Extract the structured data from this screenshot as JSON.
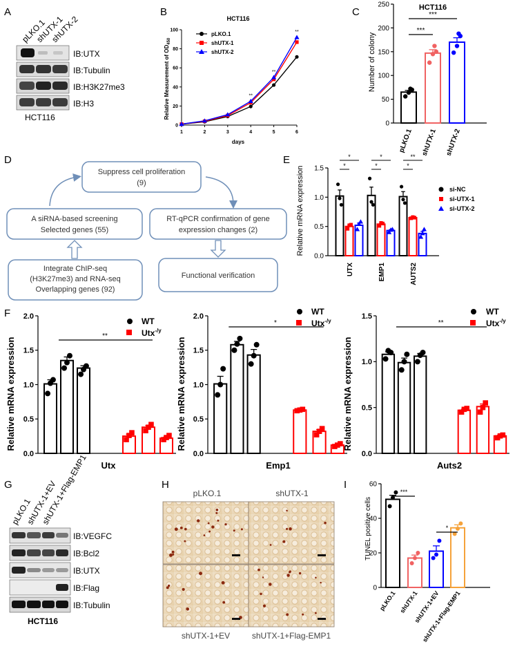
{
  "panel_letters": [
    "A",
    "B",
    "C",
    "D",
    "E",
    "F",
    "G",
    "H",
    "I"
  ],
  "colors": {
    "black": "#000000",
    "red": "#ff0000",
    "blue": "#0000ff",
    "salmon": "#f06262",
    "orange": "#f5a23a"
  },
  "panel_a": {
    "lanes": [
      "pLKO.1",
      "shUTX-1",
      "shUTX-2"
    ],
    "blots": [
      "IB:UTX",
      "IB:Tubulin",
      "IB:H3K27me3",
      "IB:H3"
    ],
    "cell_line": "HCT116"
  },
  "panel_d": {
    "boxes": {
      "top": [
        "Suppress cell proliferation",
        "(9)"
      ],
      "left": [
        "A siRNA-based screening",
        "Selected genes (55)"
      ],
      "right": [
        "RT-qPCR confirmation of gene",
        "expression changes (2)"
      ],
      "bottom_left": [
        "Integrate ChIP-seq",
        "(H3K27me3) and RNA-seq",
        "Overlapping genes (92)"
      ],
      "bottom_right": [
        "Functional verification"
      ]
    }
  },
  "panel_g": {
    "lanes": [
      "pLKO.1",
      "shUTX-1+EV",
      "shUTX-1+Flag-EMP1"
    ],
    "blots": [
      "IB:VEGFC",
      "IB:Bcl2",
      "IB:UTX",
      "IB:Flag",
      "IB:Tubulin"
    ],
    "cell_line": "HCT116"
  },
  "panel_h": {
    "top_labels": [
      "pLKO.1",
      "shUTX-1"
    ],
    "bottom_labels": [
      "shUTX-1+EV",
      "shUTX-1+Flag-EMP1"
    ]
  },
  "chart_data": [
    {
      "id": "B",
      "type": "line",
      "title": "HCT116",
      "xlabel": "days",
      "ylabel": "Relative Measurement of OD450",
      "ylabel_main": "Relative Measurement of OD",
      "ylabel_sub": "450",
      "x": [
        1,
        2,
        3,
        4,
        5,
        6
      ],
      "xlim": [
        1,
        6
      ],
      "ylim": [
        0,
        100
      ],
      "yticks": [
        0,
        20,
        40,
        60,
        80,
        100
      ],
      "series": [
        {
          "name": "pLKO.1",
          "color": "#000000",
          "marker": "circle",
          "values": [
            1,
            3.5,
            9,
            19.5,
            42,
            71.5
          ]
        },
        {
          "name": "shUTX-1",
          "color": "#ff0000",
          "marker": "square",
          "values": [
            1,
            4,
            10,
            23.5,
            48,
            87
          ]
        },
        {
          "name": "shUTX-2",
          "color": "#0000ff",
          "marker": "triangle",
          "values": [
            1,
            4.5,
            11,
            25,
            50,
            92
          ]
        }
      ],
      "annotations": [
        {
          "x": 4,
          "text": "**"
        },
        {
          "x": 5,
          "text": "**"
        },
        {
          "x": 6,
          "text": "**"
        }
      ]
    },
    {
      "id": "C",
      "type": "bar",
      "title": "HCT116",
      "ylabel": "Number of colony",
      "ylim": [
        0,
        250
      ],
      "yticks": [
        0,
        50,
        100,
        150,
        200,
        250
      ],
      "categories": [
        "pLKO.1",
        "shUTX-1",
        "shUTX-2"
      ],
      "values": [
        65,
        147,
        170
      ],
      "points": [
        [
          56,
          64,
          70,
          72
        ],
        [
          127,
          145,
          150,
          162
        ],
        [
          148,
          162,
          183,
          188
        ]
      ],
      "colors": [
        "#000000",
        "#f06262",
        "#0000ff"
      ],
      "annotations": [
        {
          "from": 0,
          "to": 1,
          "text": "***"
        },
        {
          "from": 0,
          "to": 2,
          "text": "***"
        }
      ]
    },
    {
      "id": "E",
      "type": "bar",
      "ylabel": "Relative mRNA expression",
      "ylim": [
        0,
        1.5
      ],
      "yticks": [
        0.0,
        0.5,
        1.0,
        1.5
      ],
      "categories": [
        "UTX",
        "EMP1",
        "AUTS2"
      ],
      "series": [
        {
          "name": "si-NC",
          "color": "#000000",
          "marker": "circle",
          "values": [
            1.02,
            1.03,
            1.01
          ],
          "points": [
            [
              1.22,
              0.98,
              0.87
            ],
            [
              1.32,
              0.92,
              0.87
            ],
            [
              1.18,
              0.96,
              0.9
            ]
          ]
        },
        {
          "name": "si-UTX-1",
          "color": "#ff0000",
          "marker": "square",
          "values": [
            0.5,
            0.54,
            0.65
          ],
          "points": [
            [
              0.46,
              0.52,
              0.53
            ],
            [
              0.51,
              0.56,
              0.55
            ],
            [
              0.64,
              0.66,
              0.65
            ]
          ]
        },
        {
          "name": "si-UTX-2",
          "color": "#0000ff",
          "marker": "triangle",
          "values": [
            0.52,
            0.43,
            0.38
          ],
          "points": [
            [
              0.45,
              0.54,
              0.58
            ],
            [
              0.4,
              0.44,
              0.45
            ],
            [
              0.32,
              0.38,
              0.45
            ]
          ]
        }
      ],
      "annotations": [
        {
          "group": 0,
          "pair": [
            0,
            1
          ],
          "text": "*"
        },
        {
          "group": 0,
          "pair": [
            0,
            2
          ],
          "text": "*"
        },
        {
          "group": 1,
          "pair": [
            0,
            1
          ],
          "text": "*"
        },
        {
          "group": 1,
          "pair": [
            0,
            2
          ],
          "text": "*"
        },
        {
          "group": 2,
          "pair": [
            0,
            1
          ],
          "text": "*"
        },
        {
          "group": 2,
          "pair": [
            0,
            2
          ],
          "text": "**"
        }
      ]
    },
    {
      "id": "F1",
      "type": "bar",
      "xlabel": "Utx",
      "ylabel": "Relative mRNA expression",
      "ylim": [
        0,
        2.0
      ],
      "yticks": [
        0.0,
        0.5,
        1.0,
        1.5,
        2.0
      ],
      "legend": [
        "WT",
        "Utx-/y"
      ],
      "legend_main": "Utx",
      "legend_sup": "-/y",
      "groups": [
        {
          "name": "WT",
          "color": "#000000",
          "values": [
            1.01,
            1.35,
            1.24
          ],
          "points": [
            [
              0.87,
              1.02,
              1.07
            ],
            [
              1.24,
              1.32,
              1.42
            ],
            [
              1.15,
              1.22,
              1.27
            ]
          ]
        },
        {
          "name": "Utx-/y",
          "color": "#ff0000",
          "values": [
            0.25,
            0.38,
            0.22
          ],
          "points": [
            [
              0.2,
              0.26,
              0.3
            ],
            [
              0.33,
              0.38,
              0.42
            ],
            [
              0.2,
              0.23,
              0.26
            ]
          ]
        }
      ],
      "annotation": "**"
    },
    {
      "id": "F2",
      "type": "bar",
      "xlabel": "Emp1",
      "ylabel": "Relative mRNA expression",
      "ylim": [
        0,
        2.0
      ],
      "yticks": [
        0.0,
        0.5,
        1.0,
        1.5,
        2.0
      ],
      "legend": [
        "WT",
        "Utx-/y"
      ],
      "groups": [
        {
          "name": "WT",
          "color": "#000000",
          "values": [
            1.01,
            1.58,
            1.43
          ],
          "points": [
            [
              0.85,
              1.0,
              1.23
            ],
            [
              1.5,
              1.59,
              1.67
            ],
            [
              1.3,
              1.42,
              1.58
            ]
          ]
        },
        {
          "name": "Utx-/y",
          "color": "#ff0000",
          "values": [
            0.63,
            0.32,
            0.12
          ],
          "points": [
            [
              0.62,
              0.63,
              0.64
            ],
            [
              0.27,
              0.32,
              0.36
            ],
            [
              0.1,
              0.12,
              0.14
            ]
          ]
        }
      ],
      "annotation": "*"
    },
    {
      "id": "F3",
      "type": "bar",
      "xlabel": "Auts2",
      "ylabel": "Relative mRNA expression",
      "ylim": [
        0,
        1.5
      ],
      "yticks": [
        0.0,
        0.5,
        1.0,
        1.5
      ],
      "legend": [
        "WT",
        "Utx-/y"
      ],
      "groups": [
        {
          "name": "WT",
          "color": "#000000",
          "values": [
            1.08,
            0.99,
            1.06
          ],
          "points": [
            [
              1.03,
              1.12,
              1.1
            ],
            [
              0.91,
              1.0,
              1.08
            ],
            [
              1.0,
              1.07,
              1.1
            ]
          ]
        },
        {
          "name": "Utx-/y",
          "color": "#ff0000",
          "values": [
            0.47,
            0.51,
            0.19
          ],
          "points": [
            [
              0.45,
              0.48,
              0.49
            ],
            [
              0.45,
              0.5,
              0.55
            ],
            [
              0.17,
              0.19,
              0.2
            ]
          ]
        }
      ],
      "annotation": "**"
    },
    {
      "id": "I",
      "type": "bar",
      "ylabel": "TUNEL positive cells",
      "ylim": [
        0,
        60
      ],
      "yticks": [
        0,
        20,
        40,
        60
      ],
      "categories": [
        "pLKO.1",
        "shUTX-1",
        "shUTX-1+EV",
        "shUTX-1+Flag-EMP1"
      ],
      "values": [
        51,
        17,
        21,
        34.5
      ],
      "points": [
        [
          47,
          52,
          55
        ],
        [
          14,
          17,
          20
        ],
        [
          17,
          19,
          27
        ],
        [
          31,
          34,
          37
        ]
      ],
      "colors": [
        "#000000",
        "#f06262",
        "#0000ff",
        "#f5a23a"
      ],
      "annotations": [
        {
          "from": 0,
          "to": 1,
          "text": "***"
        },
        {
          "from": 2,
          "to": 3,
          "text": "*"
        }
      ]
    }
  ]
}
